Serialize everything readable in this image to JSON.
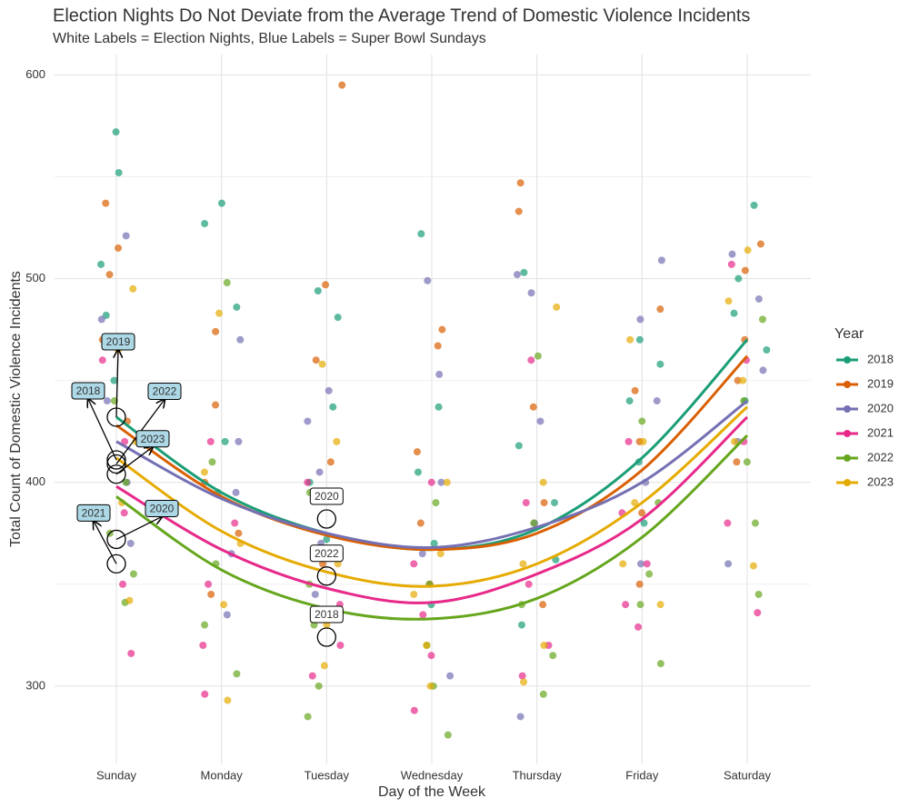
{
  "chart_data": {
    "type": "scatter",
    "title": "Election Nights Do Not Deviate from the Average Trend of Domestic Violence Incidents",
    "subtitle": "White Labels = Election Nights, Blue Labels = Super Bowl Sundays",
    "x_label": "Day of the Week",
    "y_label": "Total Count of Domestic Violence Incidents",
    "legend_title": "Year",
    "categories": [
      "Sunday",
      "Monday",
      "Tuesday",
      "Wednesday",
      "Thursday",
      "Friday",
      "Saturday"
    ],
    "ylim": [
      262,
      610
    ],
    "yticks": [
      300,
      400,
      500,
      600
    ],
    "grid": true,
    "series": [
      {
        "name": "2018",
        "color": "#1b9e77",
        "values": [
          [
            572,
            552,
            507,
            482,
            450
          ],
          [
            537,
            527,
            486,
            420,
            395
          ],
          [
            494,
            481,
            437,
            400,
            372
          ],
          [
            522,
            437,
            405,
            370,
            340
          ],
          [
            503,
            418,
            390,
            362,
            330
          ],
          [
            470,
            458,
            440,
            410,
            380
          ],
          [
            536,
            500,
            483,
            465,
            440
          ]
        ],
        "trend": [
          432,
          395,
          375,
          367,
          377,
          412,
          470
        ]
      },
      {
        "name": "2019",
        "color": "#d95f02",
        "values": [
          [
            537,
            515,
            502,
            470,
            430
          ],
          [
            474,
            438,
            400,
            375,
            345
          ],
          [
            595,
            497,
            460,
            410,
            360
          ],
          [
            475,
            467,
            415,
            380,
            350
          ],
          [
            547,
            533,
            437,
            390,
            340
          ],
          [
            485,
            445,
            420,
            385,
            350
          ],
          [
            517,
            504,
            470,
            450,
            410
          ]
        ],
        "trend": [
          428,
          393,
          374,
          367,
          375,
          406,
          462
        ]
      },
      {
        "name": "2020",
        "color": "#7570b3",
        "values": [
          [
            521,
            480,
            440,
            400,
            370
          ],
          [
            470,
            420,
            395,
            365,
            335
          ],
          [
            445,
            430,
            405,
            370,
            345
          ],
          [
            499,
            453,
            400,
            365,
            305
          ],
          [
            502,
            493,
            430,
            380,
            285
          ],
          [
            509,
            480,
            440,
            400,
            360
          ],
          [
            512,
            490,
            455,
            420,
            360
          ]
        ],
        "trend": [
          420,
          392,
          375,
          368,
          378,
          400,
          440
        ]
      },
      {
        "name": "2021",
        "color": "#e7298a",
        "values": [
          [
            460,
            420,
            385,
            350,
            316
          ],
          [
            420,
            380,
            350,
            320,
            296
          ],
          [
            400,
            365,
            340,
            320,
            305
          ],
          [
            400,
            360,
            335,
            315,
            288
          ],
          [
            460,
            390,
            350,
            320,
            305
          ],
          [
            420,
            385,
            360,
            340,
            329
          ],
          [
            507,
            460,
            420,
            380,
            336
          ]
        ],
        "trend": [
          398,
          367,
          348,
          341,
          355,
          382,
          432
        ]
      },
      {
        "name": "2022",
        "color": "#66a61e",
        "values": [
          [
            440,
            400,
            375,
            355,
            341
          ],
          [
            498,
            410,
            360,
            330,
            306
          ],
          [
            395,
            350,
            330,
            300,
            285
          ],
          [
            390,
            350,
            320,
            300,
            276
          ],
          [
            462,
            380,
            340,
            315,
            296
          ],
          [
            430,
            390,
            355,
            340,
            311
          ],
          [
            480,
            440,
            410,
            380,
            345
          ]
        ],
        "trend": [
          393,
          357,
          338,
          333,
          343,
          373,
          423
        ]
      },
      {
        "name": "2023",
        "color": "#e6ab02",
        "values": [
          [
            495,
            465,
            420,
            390,
            342
          ],
          [
            483,
            405,
            370,
            340,
            293
          ],
          [
            458,
            420,
            360,
            330,
            310
          ],
          [
            400,
            365,
            345,
            320,
            300
          ],
          [
            486,
            400,
            360,
            320,
            302
          ],
          [
            470,
            420,
            390,
            360,
            340
          ],
          [
            514,
            489,
            450,
            420,
            359
          ]
        ],
        "trend": [
          412,
          376,
          356,
          349,
          360,
          390,
          437
        ]
      }
    ],
    "super_bowl_sundays": {
      "day": "Sunday",
      "points": [
        {
          "label": "2019",
          "value": 432
        },
        {
          "label": "2018",
          "value": 411
        },
        {
          "label": "2022",
          "value": 409
        },
        {
          "label": "2023",
          "value": 404
        },
        {
          "label": "2020",
          "value": 372
        },
        {
          "label": "2021",
          "value": 360
        }
      ]
    },
    "election_nights": {
      "day": "Tuesday",
      "points": [
        {
          "label": "2020",
          "value": 382
        },
        {
          "label": "2022",
          "value": 354
        },
        {
          "label": "2018",
          "value": 324
        }
      ]
    }
  }
}
